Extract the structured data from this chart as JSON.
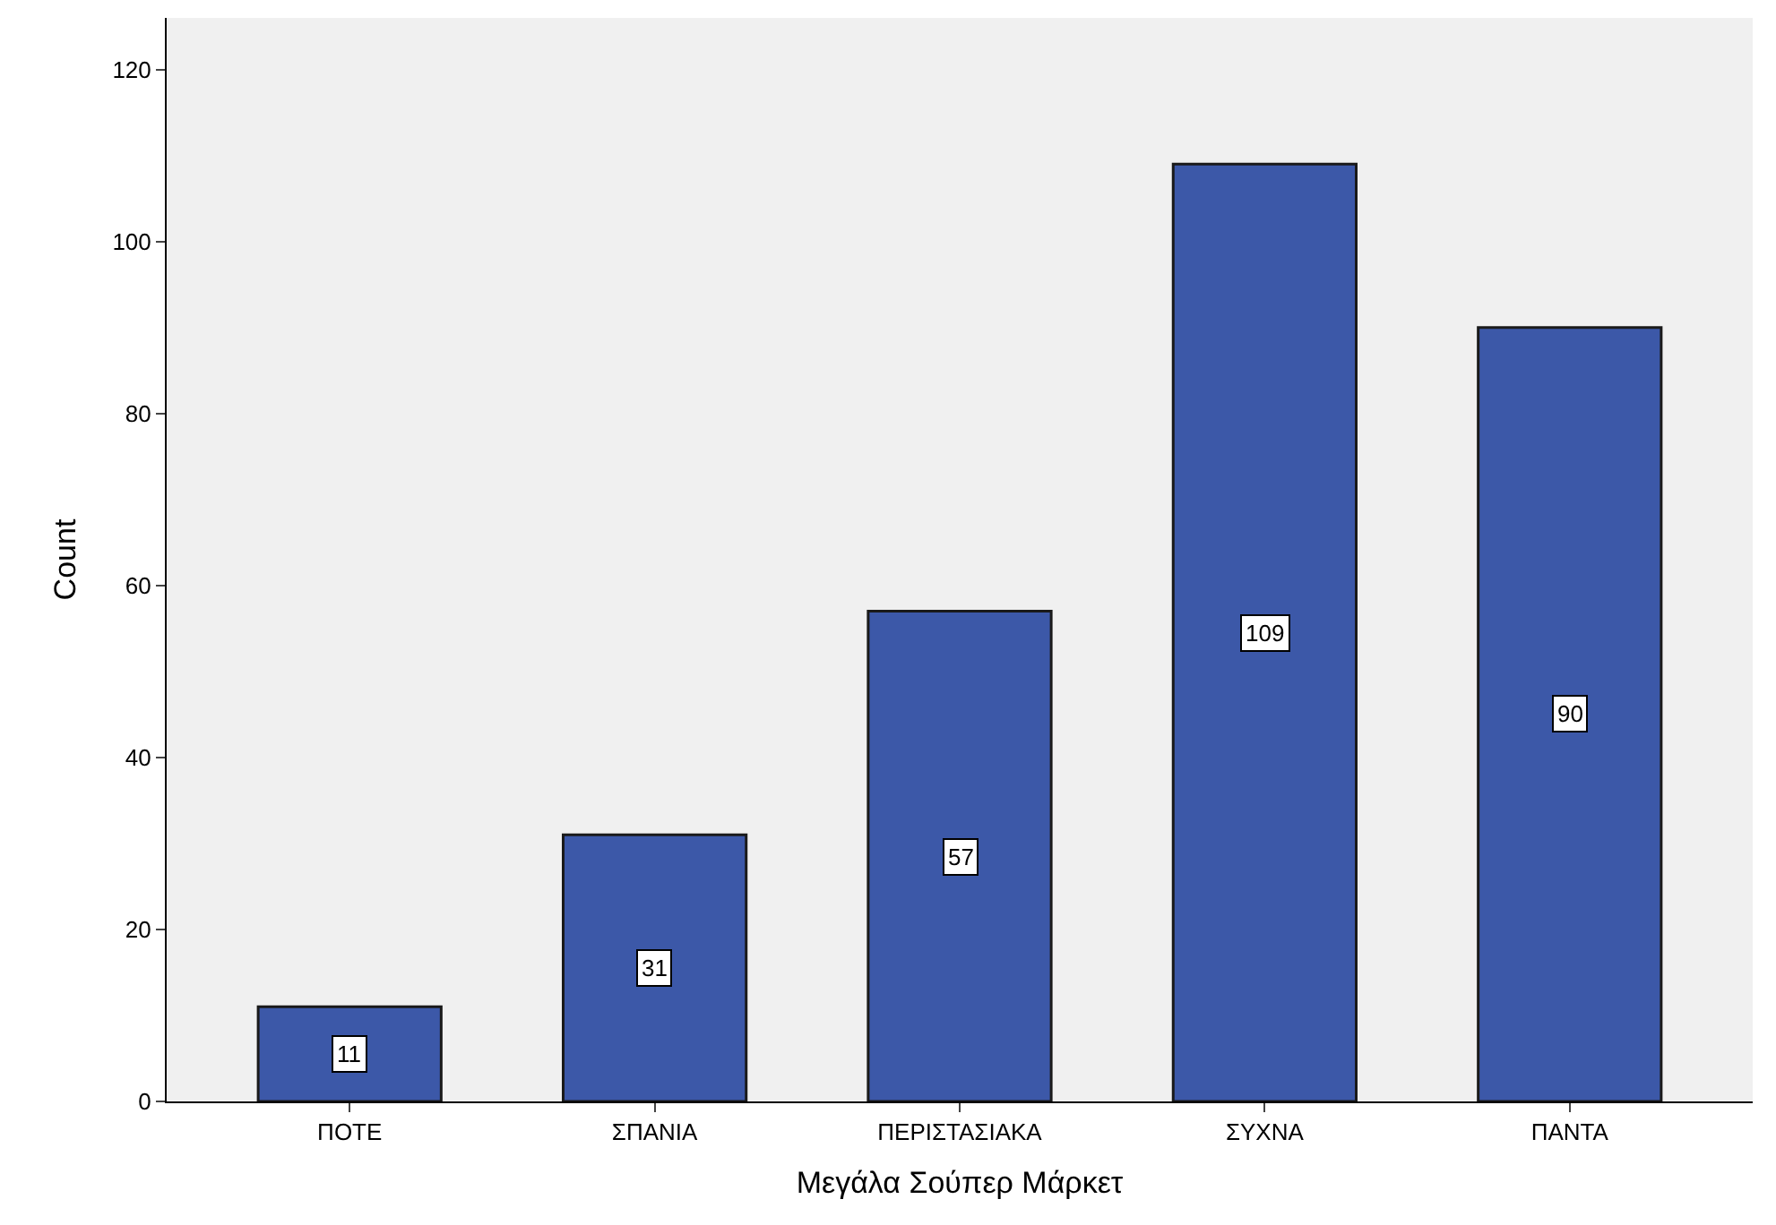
{
  "chart_data": {
    "type": "bar",
    "xlabel": "Μεγάλα Σούπερ Μάρκετ",
    "ylabel": "Count",
    "categories": [
      "ΠΟΤΕ",
      "ΣΠΑΝΙΑ",
      "ΠΕΡΙΣΤΑΣΙΑΚΑ",
      "ΣΥΧΝΑ",
      "ΠΑΝΤΑ"
    ],
    "values": [
      11,
      31,
      57,
      109,
      90
    ],
    "color": "#3c58a8",
    "ylim": [
      0,
      126
    ],
    "yticks": [
      0,
      20,
      40,
      60,
      80,
      100,
      120
    ],
    "grid": false,
    "data_labels": true
  }
}
